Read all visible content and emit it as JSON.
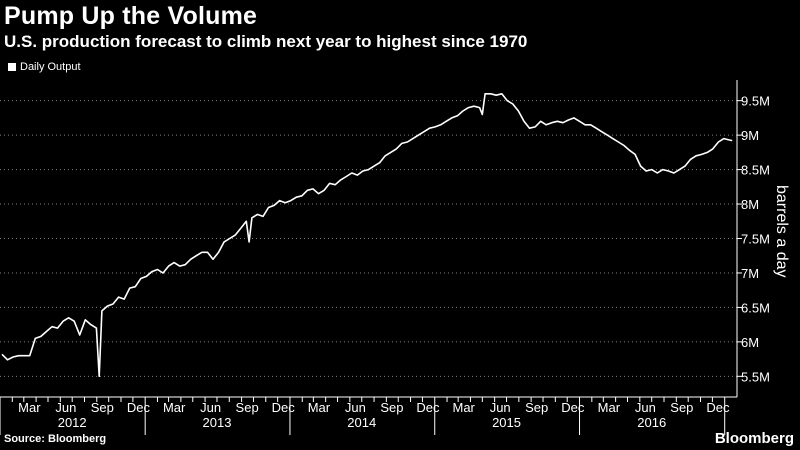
{
  "header": {
    "title": "Pump Up the Volume",
    "subtitle": "U.S. production forecast to climb next year to highest since 1970"
  },
  "footer": {
    "source": "Source: Bloomberg",
    "brand": "Bloomberg"
  },
  "colors": {
    "background": "#000000",
    "line": "#ffffff",
    "grid": "#808080"
  },
  "chart_data": {
    "type": "line",
    "title": "Pump Up the Volume",
    "subtitle": "U.S. production forecast to climb next year to highest since 1970",
    "ylabel": "barrels a day",
    "xlabel": "",
    "legend": {
      "entries": [
        "Daily Output"
      ],
      "placement": "top-left"
    },
    "grid": "horizontal dotted",
    "ylim": [
      5.2,
      9.8
    ],
    "y_ticks": [
      5.5,
      6.0,
      6.5,
      7.0,
      7.5,
      8.0,
      8.5,
      9.0,
      9.5
    ],
    "y_tick_labels": [
      "5.5M",
      "6M",
      "6.5M",
      "7M",
      "7.5M",
      "8M",
      "8.5M",
      "9M",
      "9.5M"
    ],
    "x_ticks": [
      "Mar",
      "Jun",
      "Sep",
      "Dec",
      "Mar",
      "Jun",
      "Sep",
      "Dec",
      "Mar",
      "Jun",
      "Sep",
      "Dec",
      "Mar",
      "Jun",
      "Sep",
      "Dec",
      "Mar",
      "Jun",
      "Sep",
      "Dec"
    ],
    "x_years": [
      "2012",
      "2013",
      "2014",
      "2015",
      "2016"
    ],
    "series": [
      {
        "name": "Daily Output",
        "x": [
          "2012-01-06",
          "2012-01-20",
          "2012-02-03",
          "2012-02-17",
          "2012-03-02",
          "2012-03-16",
          "2012-03-30",
          "2012-04-13",
          "2012-04-27",
          "2012-05-11",
          "2012-05-25",
          "2012-06-08",
          "2012-06-22",
          "2012-07-06",
          "2012-07-20",
          "2012-08-03",
          "2012-08-17",
          "2012-08-31",
          "2012-09-07",
          "2012-09-14",
          "2012-09-28",
          "2012-10-12",
          "2012-10-26",
          "2012-11-09",
          "2012-11-23",
          "2012-12-07",
          "2012-12-21",
          "2013-01-04",
          "2013-01-18",
          "2013-02-01",
          "2013-02-15",
          "2013-03-01",
          "2013-03-15",
          "2013-03-29",
          "2013-04-12",
          "2013-04-26",
          "2013-05-10",
          "2013-05-24",
          "2013-06-07",
          "2013-06-21",
          "2013-07-05",
          "2013-07-19",
          "2013-08-02",
          "2013-08-16",
          "2013-08-30",
          "2013-09-13",
          "2013-09-20",
          "2013-09-27",
          "2013-10-11",
          "2013-10-25",
          "2013-11-08",
          "2013-11-22",
          "2013-12-06",
          "2013-12-20",
          "2014-01-03",
          "2014-01-17",
          "2014-01-31",
          "2014-02-14",
          "2014-02-28",
          "2014-03-14",
          "2014-03-28",
          "2014-04-11",
          "2014-04-25",
          "2014-05-09",
          "2014-05-23",
          "2014-06-06",
          "2014-06-20",
          "2014-07-04",
          "2014-07-18",
          "2014-08-01",
          "2014-08-15",
          "2014-08-29",
          "2014-09-12",
          "2014-09-26",
          "2014-10-10",
          "2014-10-24",
          "2014-11-07",
          "2014-11-21",
          "2014-12-05",
          "2014-12-19",
          "2015-01-02",
          "2015-01-16",
          "2015-01-30",
          "2015-02-13",
          "2015-02-27",
          "2015-03-13",
          "2015-03-27",
          "2015-04-10",
          "2015-04-24",
          "2015-05-01",
          "2015-05-08",
          "2015-05-22",
          "2015-06-05",
          "2015-06-19",
          "2015-07-03",
          "2015-07-17",
          "2015-07-31",
          "2015-08-14",
          "2015-08-28",
          "2015-09-11",
          "2015-09-25",
          "2015-10-09",
          "2015-10-23",
          "2015-11-06",
          "2015-11-20",
          "2015-12-04",
          "2015-12-18",
          "2016-01-01",
          "2016-01-15",
          "2016-01-29",
          "2016-02-12",
          "2016-02-26",
          "2016-03-11",
          "2016-03-25",
          "2016-04-08",
          "2016-04-22",
          "2016-05-06",
          "2016-05-20",
          "2016-06-03",
          "2016-06-17",
          "2016-07-01",
          "2016-07-15",
          "2016-07-29",
          "2016-08-12",
          "2016-08-26",
          "2016-09-09",
          "2016-09-23",
          "2016-10-07",
          "2016-10-21",
          "2016-11-04",
          "2016-11-18",
          "2016-12-02",
          "2016-12-16",
          "2016-12-30",
          "2017-01-13",
          "2017-01-20"
        ],
        "y": [
          5.82,
          5.74,
          5.78,
          5.8,
          5.8,
          5.8,
          6.05,
          6.08,
          6.15,
          6.22,
          6.2,
          6.3,
          6.35,
          6.3,
          6.1,
          6.32,
          6.25,
          6.2,
          5.5,
          6.45,
          6.52,
          6.55,
          6.65,
          6.62,
          6.78,
          6.8,
          6.92,
          6.95,
          7.02,
          7.05,
          7.0,
          7.1,
          7.15,
          7.1,
          7.12,
          7.2,
          7.25,
          7.3,
          7.3,
          7.2,
          7.3,
          7.45,
          7.5,
          7.55,
          7.65,
          7.75,
          7.45,
          7.8,
          7.85,
          7.82,
          7.95,
          7.98,
          8.05,
          8.02,
          8.05,
          8.1,
          8.12,
          8.2,
          8.22,
          8.15,
          8.2,
          8.3,
          8.28,
          8.35,
          8.4,
          8.45,
          8.42,
          8.48,
          8.5,
          8.55,
          8.6,
          8.7,
          8.75,
          8.8,
          8.88,
          8.9,
          8.95,
          9.0,
          9.05,
          9.1,
          9.12,
          9.15,
          9.2,
          9.25,
          9.28,
          9.35,
          9.4,
          9.42,
          9.4,
          9.3,
          9.6,
          9.6,
          9.58,
          9.6,
          9.5,
          9.45,
          9.35,
          9.2,
          9.1,
          9.12,
          9.2,
          9.15,
          9.18,
          9.2,
          9.18,
          9.22,
          9.25,
          9.2,
          9.15,
          9.15,
          9.1,
          9.05,
          9.0,
          8.95,
          8.9,
          8.85,
          8.78,
          8.72,
          8.55,
          8.48,
          8.5,
          8.45,
          8.5,
          8.48,
          8.45,
          8.5,
          8.55,
          8.65,
          8.7,
          8.72,
          8.75,
          8.8,
          8.9,
          8.95,
          8.93,
          8.92
        ]
      }
    ]
  }
}
